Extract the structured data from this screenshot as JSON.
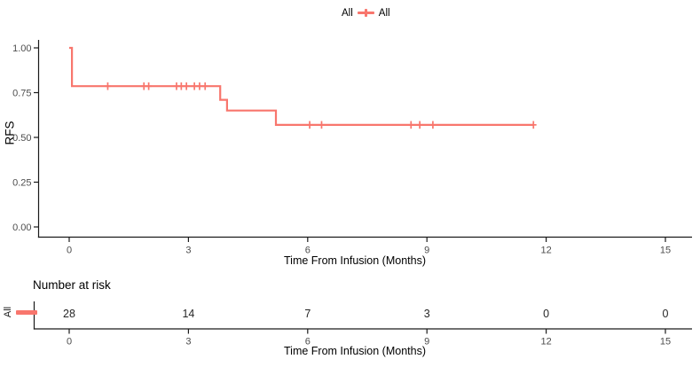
{
  "legend": {
    "title": "All",
    "label": "All"
  },
  "colors": {
    "accent": "#F8766D",
    "axis": "#1a1a1a",
    "tick_text": "#4d4d4d",
    "risk_number": "#262626"
  },
  "main_plot": {
    "ylabel": "RFS",
    "xlabel": "Time From Infusion (Months)",
    "y_ticks": [
      {
        "value": 0,
        "label": "0.00"
      },
      {
        "value": 0.25,
        "label": "0.25"
      },
      {
        "value": 0.5,
        "label": "0.50"
      },
      {
        "value": 0.75,
        "label": "0.75"
      },
      {
        "value": 1,
        "label": "1.00"
      }
    ],
    "x_ticks": [
      0,
      3,
      6,
      9,
      12,
      15
    ]
  },
  "risk_table": {
    "title": "Number at risk",
    "row_label": "All",
    "x_ticks": [
      0,
      3,
      6,
      9,
      12,
      15
    ],
    "values": [
      "28",
      "14",
      "7",
      "3",
      "0",
      "0"
    ],
    "xlabel": "Time From Infusion (Months)"
  },
  "chart_data": {
    "type": "line",
    "subtype": "kaplan-meier-step",
    "title": "",
    "xlabel": "Time From Infusion (Months)",
    "ylabel": "RFS",
    "xlim": [
      0,
      15.6
    ],
    "ylim": [
      0,
      1.05
    ],
    "grid": false,
    "legend_position": "top",
    "series": [
      {
        "name": "All",
        "color": "#F8766D",
        "steps": [
          [
            0,
            1.0
          ],
          [
            0.07,
            1.0
          ],
          [
            0.07,
            0.786
          ],
          [
            3.8,
            0.786
          ],
          [
            3.8,
            0.71
          ],
          [
            3.97,
            0.71
          ],
          [
            3.97,
            0.65
          ],
          [
            5.2,
            0.65
          ],
          [
            5.2,
            0.57
          ],
          [
            11.68,
            0.57
          ]
        ],
        "censor_marks": [
          [
            0.97,
            0.786
          ],
          [
            1.88,
            0.786
          ],
          [
            2.0,
            0.786
          ],
          [
            2.7,
            0.786
          ],
          [
            2.82,
            0.786
          ],
          [
            2.95,
            0.786
          ],
          [
            3.15,
            0.786
          ],
          [
            3.28,
            0.786
          ],
          [
            3.42,
            0.786
          ],
          [
            6.05,
            0.57
          ],
          [
            6.35,
            0.57
          ],
          [
            8.6,
            0.57
          ],
          [
            8.82,
            0.57
          ],
          [
            9.15,
            0.57
          ],
          [
            11.68,
            0.57
          ]
        ]
      }
    ],
    "number_at_risk": {
      "times": [
        0,
        3,
        6,
        9,
        12,
        15
      ],
      "All": [
        28,
        14,
        7,
        3,
        0,
        0
      ]
    }
  }
}
